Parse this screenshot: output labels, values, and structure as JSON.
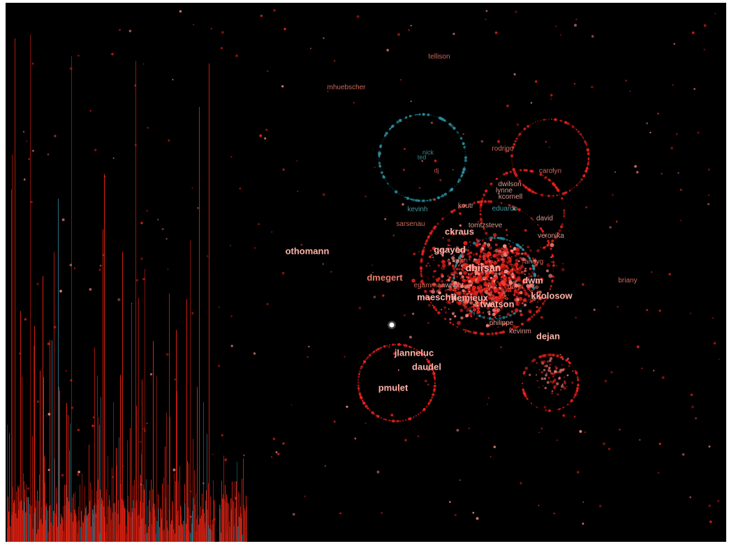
{
  "colors": {
    "background": "#000000",
    "node_red": "#e8201a",
    "node_pink": "#ff8a80",
    "label_salmon": "#f07a6a",
    "label_bright": "#ffb3a8",
    "teal": "#2a8fa0",
    "teal_label": "#4fb3b8",
    "histogram_red": "#e02010",
    "histogram_teal": "#2a7a90"
  },
  "labels": [
    {
      "text": "tellison",
      "size": "s",
      "color": "salmon"
    },
    {
      "text": "mhuebscher",
      "size": "s",
      "color": "salmon"
    },
    {
      "text": "ted",
      "size": "xs",
      "color": "teal"
    },
    {
      "text": "nick",
      "size": "xs",
      "color": "teal"
    },
    {
      "text": "rodrigo",
      "size": "s",
      "color": "salmon"
    },
    {
      "text": "dj",
      "size": "xs",
      "color": "salmon"
    },
    {
      "text": "carolyn",
      "size": "s",
      "color": "salmon"
    },
    {
      "text": "dwilson",
      "size": "s",
      "color": "bright"
    },
    {
      "text": "lynne",
      "size": "s",
      "color": "bright"
    },
    {
      "text": "kcornell",
      "size": "s",
      "color": "bright"
    },
    {
      "text": "kevinh",
      "size": "s",
      "color": "teal"
    },
    {
      "text": "eduardo",
      "size": "s",
      "color": "teal"
    },
    {
      "text": "koutr",
      "size": "s",
      "color": "bright"
    },
    {
      "text": "sarsenau",
      "size": "s",
      "color": "salmon"
    },
    {
      "text": "ckraus",
      "size": "l",
      "color": "bright"
    },
    {
      "text": "tomtzsteve",
      "size": "s",
      "color": "bright"
    },
    {
      "text": "david",
      "size": "s",
      "color": "bright"
    },
    {
      "text": "veronika",
      "size": "s",
      "color": "bright"
    },
    {
      "text": "othomann",
      "size": "l",
      "color": "bright"
    },
    {
      "text": "ggayed",
      "size": "l",
      "color": "bright"
    },
    {
      "text": "dbirsan",
      "size": "xl",
      "color": "bright"
    },
    {
      "text": "randyg",
      "size": "s",
      "color": "salmon"
    },
    {
      "text": "erich",
      "size": "xs",
      "color": "salmon"
    },
    {
      "text": "dmegert",
      "size": "l",
      "color": "salmon"
    },
    {
      "text": "dwm",
      "size": "l",
      "color": "bright"
    },
    {
      "text": "darin",
      "size": "s",
      "color": "salmon"
    },
    {
      "text": "egamma",
      "size": "s",
      "color": "salmon"
    },
    {
      "text": "awright",
      "size": "s",
      "color": "bright"
    },
    {
      "text": "briany",
      "size": "s",
      "color": "salmon"
    },
    {
      "text": "maeschli",
      "size": "l",
      "color": "bright"
    },
    {
      "text": "kkolosow",
      "size": "l",
      "color": "bright"
    },
    {
      "text": "jlemieux",
      "size": "l",
      "color": "bright"
    },
    {
      "text": "twatson",
      "size": "l",
      "color": "bright"
    },
    {
      "text": "philippe",
      "size": "s",
      "color": "bright"
    },
    {
      "text": "kevinm",
      "size": "s",
      "color": "bright"
    },
    {
      "text": "dejan",
      "size": "l",
      "color": "bright"
    },
    {
      "text": "jlanneluc",
      "size": "l",
      "color": "bright"
    },
    {
      "text": "daudel",
      "size": "l",
      "color": "bright"
    },
    {
      "text": "pmulet",
      "size": "l",
      "color": "bright"
    }
  ]
}
